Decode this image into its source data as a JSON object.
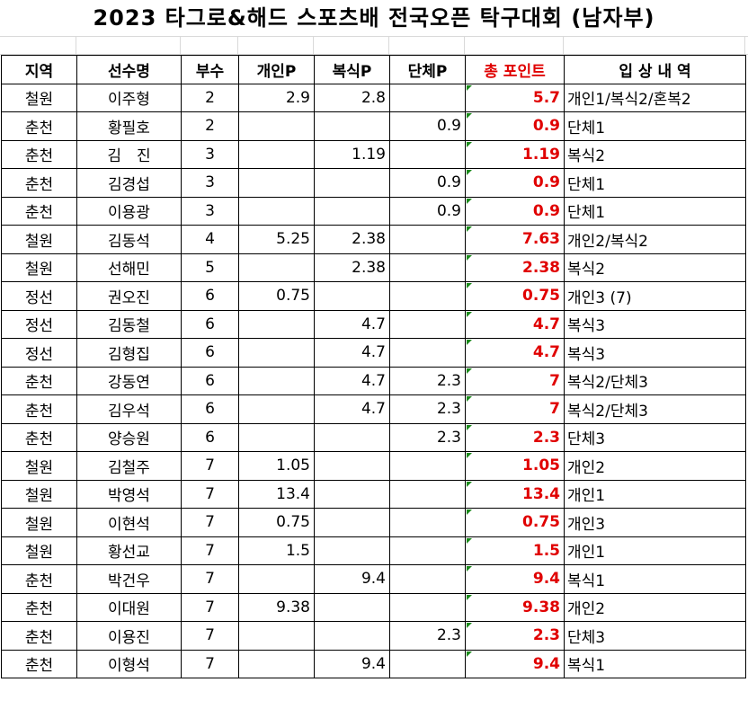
{
  "title": "2023 타그로&해드 스포츠배 전국오픈 탁구대회 (남자부)",
  "headers": [
    "지역",
    "선수명",
    "부수",
    "개인P",
    "복식P",
    "단체P",
    "총 포인트",
    "입 상 내 역"
  ],
  "rows": [
    {
      "region": "철원",
      "name": "이주형",
      "level": "2",
      "single": "2.9",
      "double": "2.8",
      "team": "",
      "total": "5.7",
      "award": "개인1/복식2/혼복2"
    },
    {
      "region": "춘천",
      "name": "황필호",
      "level": "2",
      "single": "",
      "double": "",
      "team": "0.9",
      "total": "0.9",
      "award": "단체1"
    },
    {
      "region": "춘천",
      "name": "김　진",
      "level": "3",
      "single": "",
      "double": "1.19",
      "team": "",
      "total": "1.19",
      "award": "복식2"
    },
    {
      "region": "춘천",
      "name": "김경섭",
      "level": "3",
      "single": "",
      "double": "",
      "team": "0.9",
      "total": "0.9",
      "award": "단체1"
    },
    {
      "region": "춘천",
      "name": "이용광",
      "level": "3",
      "single": "",
      "double": "",
      "team": "0.9",
      "total": "0.9",
      "award": "단체1"
    },
    {
      "region": "철원",
      "name": "김동석",
      "level": "4",
      "single": "5.25",
      "double": "2.38",
      "team": "",
      "total": "7.63",
      "award": "개인2/복식2"
    },
    {
      "region": "철원",
      "name": "선해민",
      "level": "5",
      "single": "",
      "double": "2.38",
      "team": "",
      "total": "2.38",
      "award": "복식2"
    },
    {
      "region": "정선",
      "name": "권오진",
      "level": "6",
      "single": "0.75",
      "double": "",
      "team": "",
      "total": "0.75",
      "award": "개인3 (7)"
    },
    {
      "region": "정선",
      "name": "김동철",
      "level": "6",
      "single": "",
      "double": "4.7",
      "team": "",
      "total": "4.7",
      "award": "복식3"
    },
    {
      "region": "정선",
      "name": "김형집",
      "level": "6",
      "single": "",
      "double": "4.7",
      "team": "",
      "total": "4.7",
      "award": "복식3"
    },
    {
      "region": "춘천",
      "name": "강동연",
      "level": "6",
      "single": "",
      "double": "4.7",
      "team": "2.3",
      "total": "7",
      "award": "복식2/단체3"
    },
    {
      "region": "춘천",
      "name": "김우석",
      "level": "6",
      "single": "",
      "double": "4.7",
      "team": "2.3",
      "total": "7",
      "award": "복식2/단체3"
    },
    {
      "region": "춘천",
      "name": "양승원",
      "level": "6",
      "single": "",
      "double": "",
      "team": "2.3",
      "total": "2.3",
      "award": "단체3"
    },
    {
      "region": "철원",
      "name": "김철주",
      "level": "7",
      "single": "1.05",
      "double": "",
      "team": "",
      "total": "1.05",
      "award": "개인2"
    },
    {
      "region": "철원",
      "name": "박영석",
      "level": "7",
      "single": "13.4",
      "double": "",
      "team": "",
      "total": "13.4",
      "award": "개인1"
    },
    {
      "region": "철원",
      "name": "이현석",
      "level": "7",
      "single": "0.75",
      "double": "",
      "team": "",
      "total": "0.75",
      "award": "개인3"
    },
    {
      "region": "철원",
      "name": "황선교",
      "level": "7",
      "single": "1.5",
      "double": "",
      "team": "",
      "total": "1.5",
      "award": "개인1"
    },
    {
      "region": "춘천",
      "name": "박건우",
      "level": "7",
      "single": "",
      "double": "9.4",
      "team": "",
      "total": "9.4",
      "award": "복식1"
    },
    {
      "region": "춘천",
      "name": "이대원",
      "level": "7",
      "single": "9.38",
      "double": "",
      "team": "",
      "total": "9.38",
      "award": "개인2"
    },
    {
      "region": "춘천",
      "name": "이용진",
      "level": "7",
      "single": "",
      "double": "",
      "team": "2.3",
      "total": "2.3",
      "award": "단체3"
    },
    {
      "region": "춘천",
      "name": "이형석",
      "level": "7",
      "single": "",
      "double": "9.4",
      "team": "",
      "total": "9.4",
      "award": "복식1"
    }
  ],
  "colors": {
    "total_text": "#e00000",
    "header_total_text": "#e00000",
    "comment_marker": "#1a8a1a",
    "border": "#000000"
  }
}
